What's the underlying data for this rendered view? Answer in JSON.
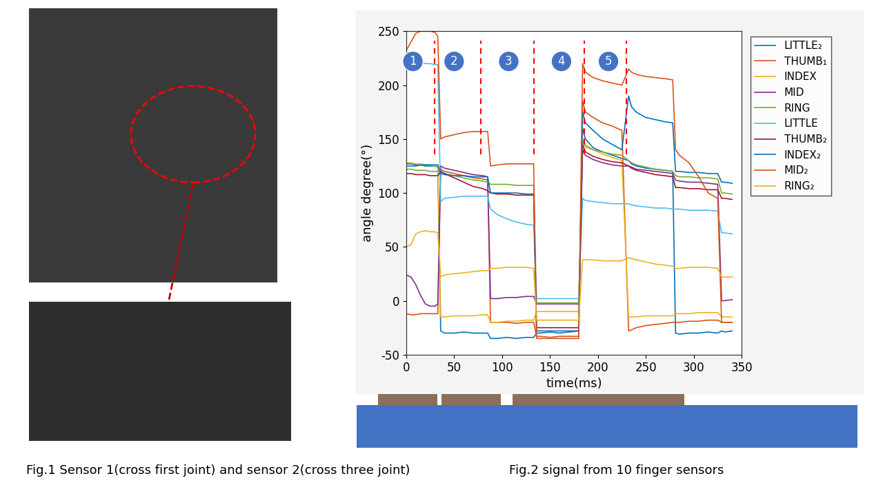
{
  "chart_data": {
    "type": "line",
    "x_label": "time(ms)",
    "y_label": "angle degree(°)",
    "x": [
      0,
      5,
      10,
      15,
      20,
      25,
      30,
      33,
      36,
      40,
      50,
      60,
      70,
      80,
      85,
      88,
      95,
      105,
      115,
      125,
      133,
      136,
      140,
      150,
      160,
      170,
      180,
      184,
      187,
      195,
      205,
      215,
      225,
      232,
      235,
      240,
      250,
      260,
      270,
      278,
      281,
      285,
      295,
      305,
      315,
      325,
      329,
      332,
      340
    ],
    "series": [
      {
        "name": "LITTLE₂",
        "color": "#0072BD",
        "values": [
          127,
          127,
          126,
          126,
          125,
          125,
          125,
          124,
          -28,
          -30,
          -30,
          -29,
          -30,
          -30,
          -30,
          -35,
          -35,
          -34,
          -35,
          -34,
          -34,
          -30,
          -30,
          -29,
          -30,
          -29,
          -28,
          160,
          150,
          142,
          138,
          135,
          132,
          130,
          127,
          125,
          123,
          122,
          121,
          120,
          -30,
          -31,
          -30,
          -30,
          -29,
          -30,
          -28,
          -29,
          -28
        ]
      },
      {
        "name": "THUMB₁",
        "color": "#D95319",
        "values": [
          -12,
          -13,
          -13,
          -12,
          -12,
          -12,
          -12,
          -12,
          122,
          120,
          118,
          116,
          114,
          113,
          112,
          -20,
          -20,
          -20,
          -21,
          -20,
          -20,
          -33,
          -33,
          -34,
          -33,
          -33,
          -33,
          185,
          175,
          170,
          165,
          162,
          158,
          -28,
          -27,
          -25,
          -23,
          -22,
          -21,
          -20,
          -20,
          -20,
          -19,
          -19,
          -18,
          -18,
          -20,
          -20,
          -20
        ]
      },
      {
        "name": "INDEX",
        "color": "#EDB120",
        "values": [
          128,
          128,
          127,
          127,
          126,
          126,
          125,
          125,
          -15,
          -15,
          -14,
          -14,
          -14,
          -13,
          -13,
          -20,
          -20,
          -19,
          -19,
          -18,
          -18,
          -10,
          -10,
          -10,
          -10,
          -10,
          -10,
          150,
          145,
          140,
          136,
          133,
          130,
          -15,
          -15,
          -15,
          -14,
          -14,
          -14,
          -14,
          -12,
          -12,
          -12,
          -11,
          -11,
          -11,
          -15,
          -15,
          -15
        ]
      },
      {
        "name": "MID",
        "color": "#7E2F8E",
        "values": [
          24,
          22,
          15,
          5,
          -3,
          -5,
          -5,
          -3,
          125,
          123,
          121,
          119,
          117,
          116,
          115,
          2,
          2,
          3,
          3,
          4,
          4,
          -3,
          -3,
          -3,
          -3,
          -3,
          -3,
          140,
          135,
          131,
          128,
          126,
          125,
          125,
          124,
          122,
          121,
          120,
          119,
          118,
          112,
          111,
          110,
          110,
          109,
          108,
          0,
          0,
          1
        ]
      },
      {
        "name": "RING",
        "color": "#77AC30",
        "values": [
          122,
          122,
          121,
          121,
          121,
          120,
          120,
          120,
          120,
          118,
          116,
          114,
          112,
          111,
          110,
          108,
          108,
          108,
          107,
          107,
          107,
          -2,
          -2,
          -2,
          -2,
          -2,
          -2,
          148,
          143,
          140,
          138,
          136,
          135,
          130,
          128,
          126,
          124,
          122,
          121,
          120,
          116,
          115,
          115,
          114,
          114,
          113,
          100,
          100,
          99
        ]
      },
      {
        "name": "LITTLE",
        "color": "#4DBEEE",
        "values": [
          222,
          221,
          221,
          221,
          220,
          220,
          219,
          219,
          92,
          95,
          96,
          97,
          97,
          97,
          97,
          85,
          80,
          76,
          73,
          71,
          70,
          2,
          2,
          2,
          2,
          2,
          2,
          95,
          93,
          92,
          91,
          90,
          90,
          90,
          89,
          88,
          87,
          86,
          86,
          85,
          85,
          85,
          84,
          84,
          84,
          83,
          63,
          63,
          62
        ]
      },
      {
        "name": "THUMB₂",
        "color": "#A2142F",
        "values": [
          118,
          118,
          117,
          117,
          117,
          116,
          116,
          116,
          120,
          118,
          114,
          110,
          106,
          104,
          102,
          100,
          99,
          99,
          98,
          98,
          98,
          -25,
          -25,
          -25,
          -25,
          -25,
          -25,
          145,
          138,
          134,
          131,
          129,
          128,
          125,
          123,
          121,
          119,
          117,
          116,
          115,
          105,
          105,
          104,
          104,
          103,
          103,
          95,
          95,
          94
        ]
      },
      {
        "name": "INDEX₂",
        "color": "#0072BD",
        "values": [
          125,
          125,
          125,
          126,
          126,
          126,
          126,
          126,
          118,
          117,
          116,
          116,
          115,
          115,
          115,
          100,
          100,
          100,
          100,
          99,
          99,
          -28,
          -28,
          -28,
          -28,
          -28,
          -28,
          175,
          165,
          158,
          150,
          145,
          140,
          190,
          180,
          175,
          170,
          168,
          166,
          165,
          120,
          120,
          119,
          119,
          118,
          118,
          110,
          110,
          109
        ]
      },
      {
        "name": "MID₂",
        "color": "#D95319",
        "values": [
          232,
          240,
          248,
          250,
          250,
          250,
          249,
          245,
          150,
          152,
          154,
          156,
          157,
          157,
          157,
          125,
          126,
          127,
          127,
          127,
          127,
          -35,
          -35,
          -35,
          -35,
          -35,
          -35,
          220,
          212,
          207,
          204,
          202,
          200,
          215,
          212,
          210,
          208,
          207,
          206,
          205,
          140,
          135,
          128,
          115,
          100,
          95,
          -20,
          -20,
          -20
        ]
      },
      {
        "name": "RING₂",
        "color": "#EDB120",
        "values": [
          50,
          52,
          62,
          64,
          65,
          64,
          64,
          63,
          22,
          24,
          25,
          26,
          27,
          28,
          28,
          30,
          30,
          31,
          31,
          31,
          30,
          -18,
          -18,
          -18,
          -18,
          -18,
          -18,
          38,
          38,
          38,
          37,
          37,
          37,
          40,
          39,
          38,
          36,
          34,
          33,
          32,
          30,
          30,
          31,
          31,
          31,
          30,
          22,
          22,
          22
        ]
      }
    ],
    "xlim": [
      0,
      350
    ],
    "xticks": [
      0,
      50,
      100,
      150,
      200,
      250,
      300,
      350
    ],
    "ylim": [
      -50,
      250
    ],
    "yticks": [
      -50,
      0,
      50,
      100,
      150,
      200,
      250
    ],
    "grid": false,
    "legend": "right",
    "annotations": [
      {
        "text": "1",
        "x": 7,
        "y": 222
      },
      {
        "text": "2",
        "x": 50,
        "y": 222
      },
      {
        "text": "3",
        "x": 107,
        "y": 222
      },
      {
        "text": "4",
        "x": 162,
        "y": 222
      },
      {
        "text": "5",
        "x": 211,
        "y": 222
      }
    ],
    "phase_boundaries": [
      30,
      78,
      133,
      186,
      230
    ]
  },
  "captions": [
    "Fig.1 Sensor 1(cross first joint) and sensor 2(cross three joint)",
    "Fig.2 signal from 10 finger sensors"
  ]
}
